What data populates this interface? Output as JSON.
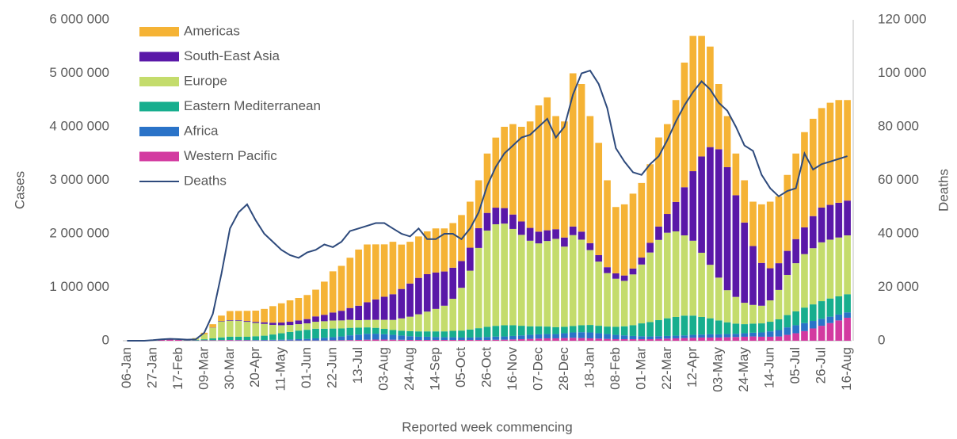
{
  "chart_data": {
    "type": "bar",
    "stacked": true,
    "x_label": "Reported week commencing",
    "y_label": "Cases",
    "y2_label": "Deaths",
    "categories": [
      "06-Jan",
      null,
      null,
      "27-Jan",
      null,
      null,
      "17-Feb",
      null,
      null,
      "09-Mar",
      null,
      null,
      "30-Mar",
      null,
      null,
      "20-Apr",
      null,
      null,
      "11-May",
      null,
      null,
      "01-Jun",
      null,
      null,
      "22-Jun",
      null,
      null,
      "13-Jul",
      null,
      null,
      "03-Aug",
      null,
      null,
      "24-Aug",
      null,
      null,
      "14-Sep",
      null,
      null,
      "05-Oct",
      null,
      null,
      "26-Oct",
      null,
      null,
      "16-Nov",
      null,
      null,
      "07-Dec",
      null,
      null,
      "28-Dec",
      null,
      null,
      "18-Jan",
      null,
      null,
      "08-Feb",
      null,
      null,
      "01-Mar",
      null,
      null,
      "22-Mar",
      null,
      null,
      "12-Apr",
      null,
      null,
      "03-May",
      null,
      null,
      "24-May",
      null,
      null,
      "14-Jun",
      null,
      null,
      "05-Jul",
      null,
      null,
      "26-Jul",
      null,
      null,
      "16-Aug"
    ],
    "ylim": [
      0,
      6000000
    ],
    "yticks": [
      0,
      {
        "value": 1000000,
        "label": "1 000 000"
      },
      {
        "value": 2000000,
        "label": "2 000 000"
      },
      {
        "value": 3000000,
        "label": "3 000 000"
      },
      {
        "value": 4000000,
        "label": "4 000 000"
      },
      {
        "value": 5000000,
        "label": "5 000 000"
      },
      {
        "value": 6000000,
        "label": "6 000 000"
      }
    ],
    "y2lim": [
      0,
      120000
    ],
    "y2ticks": [
      0,
      {
        "value": 20000,
        "label": "20 000"
      },
      {
        "value": 40000,
        "label": "40 000"
      },
      {
        "value": 60000,
        "label": "60 000"
      },
      {
        "value": 80000,
        "label": "80 000"
      },
      {
        "value": 100000,
        "label": "100 000"
      },
      {
        "value": 120000,
        "label": "120 000"
      }
    ],
    "legend": "top-left",
    "series": [
      {
        "name": "Americas",
        "color": "#f5b335",
        "values": [
          0,
          0,
          0,
          0,
          0,
          0,
          0,
          2000,
          5000,
          30000,
          60000,
          100000,
          170000,
          170000,
          190000,
          210000,
          250000,
          310000,
          360000,
          400000,
          420000,
          450000,
          500000,
          620000,
          770000,
          840000,
          940000,
          1050000,
          1080000,
          1030000,
          980000,
          980000,
          830000,
          780000,
          775000,
          800000,
          825000,
          805000,
          835000,
          860000,
          860000,
          895000,
          1110000,
          1310000,
          1520000,
          1690000,
          1770000,
          1990000,
          2360000,
          2485000,
          2115000,
          2170000,
          2865000,
          2760000,
          2375000,
          2100000,
          1625000,
          1240000,
          1330000,
          1400000,
          1395000,
          1470000,
          1665000,
          1680000,
          1905000,
          2330000,
          2530000,
          2255000,
          1880000,
          1220000,
          955000,
          780000,
          790000,
          830000,
          1095000,
          1245000,
          1250000,
          1420000,
          1600000,
          1780000,
          1820000,
          1860000,
          1910000,
          1920000,
          1880000
        ]
      },
      {
        "name": "South-East Asia",
        "color": "#5a18a8",
        "values": [
          0,
          0,
          0,
          0,
          0,
          0,
          0,
          0,
          1000,
          2000,
          5000,
          8000,
          10000,
          12000,
          15000,
          20000,
          30000,
          40000,
          50000,
          60000,
          70000,
          80000,
          100000,
          120000,
          150000,
          180000,
          220000,
          270000,
          330000,
          380000,
          430000,
          480000,
          550000,
          620000,
          680000,
          700000,
          680000,
          640000,
          580000,
          500000,
          430000,
          370000,
          330000,
          310000,
          290000,
          270000,
          250000,
          240000,
          220000,
          200000,
          180000,
          170000,
          160000,
          150000,
          130000,
          120000,
          110000,
          100000,
          100000,
          110000,
          130000,
          180000,
          250000,
          350000,
          550000,
          900000,
          1300000,
          1800000,
          2200000,
          2400000,
          2300000,
          1900000,
          1500000,
          1100000,
          800000,
          600000,
          500000,
          450000,
          450000,
          500000,
          600000,
          650000,
          650000,
          650000,
          650000
        ]
      },
      {
        "name": "Europe",
        "color": "#c4dc6c",
        "values": [
          0,
          0,
          0,
          0,
          0,
          0,
          2000,
          8000,
          30000,
          90000,
          200000,
          300000,
          300000,
          300000,
          280000,
          250000,
          220000,
          180000,
          150000,
          130000,
          120000,
          120000,
          130000,
          140000,
          150000,
          150000,
          150000,
          140000,
          140000,
          150000,
          170000,
          190000,
          230000,
          270000,
          320000,
          370000,
          420000,
          480000,
          600000,
          800000,
          1100000,
          1500000,
          1800000,
          1900000,
          1900000,
          1800000,
          1700000,
          1600000,
          1550000,
          1600000,
          1650000,
          1500000,
          1700000,
          1600000,
          1400000,
          1200000,
          1000000,
          900000,
          850000,
          950000,
          1100000,
          1300000,
          1500000,
          1600000,
          1600000,
          1500000,
          1400000,
          1200000,
          1000000,
          800000,
          600000,
          500000,
          400000,
          350000,
          330000,
          400000,
          550000,
          750000,
          900000,
          1000000,
          1050000,
          1100000,
          1100000,
          1100000,
          1100000
        ]
      },
      {
        "name": "Eastern Mediterranean",
        "color": "#17ae8e",
        "values": [
          0,
          0,
          0,
          0,
          0,
          0,
          0,
          3000,
          10000,
          20000,
          35000,
          50000,
          60000,
          60000,
          60000,
          70000,
          80000,
          100000,
          120000,
          140000,
          160000,
          170000,
          180000,
          170000,
          160000,
          150000,
          140000,
          130000,
          120000,
          110000,
          100000,
          90000,
          90000,
          95000,
          100000,
          100000,
          105000,
          110000,
          120000,
          130000,
          150000,
          170000,
          190000,
          200000,
          210000,
          200000,
          180000,
          160000,
          150000,
          140000,
          130000,
          120000,
          120000,
          130000,
          140000,
          140000,
          140000,
          150000,
          170000,
          200000,
          240000,
          270000,
          300000,
          330000,
          350000,
          370000,
          360000,
          330000,
          300000,
          260000,
          220000,
          190000,
          170000,
          170000,
          170000,
          180000,
          200000,
          230000,
          260000,
          290000,
          310000,
          330000,
          340000,
          340000,
          340000
        ]
      },
      {
        "name": "Africa",
        "color": "#2a73c8",
        "values": [
          0,
          0,
          0,
          0,
          0,
          0,
          0,
          0,
          0,
          0,
          1000,
          2000,
          3000,
          5000,
          6000,
          8000,
          10000,
          12000,
          15000,
          20000,
          25000,
          30000,
          40000,
          50000,
          60000,
          70000,
          90000,
          100000,
          110000,
          110000,
          100000,
          90000,
          80000,
          70000,
          60000,
          60000,
          55000,
          50000,
          50000,
          45000,
          45000,
          50000,
          55000,
          60000,
          60000,
          65000,
          70000,
          75000,
          80000,
          80000,
          80000,
          90000,
          100000,
          110000,
          110000,
          100000,
          90000,
          80000,
          70000,
          60000,
          55000,
          50000,
          50000,
          50000,
          50000,
          50000,
          55000,
          55000,
          60000,
          60000,
          60000,
          60000,
          65000,
          70000,
          80000,
          100000,
          120000,
          140000,
          150000,
          150000,
          140000,
          130000,
          120000,
          110000,
          100000
        ]
      },
      {
        "name": "Western Pacific",
        "color": "#d33aa0",
        "values": [
          0,
          0,
          0,
          15000,
          20000,
          25000,
          15000,
          5000,
          5000,
          8000,
          8000,
          10000,
          12000,
          10000,
          8000,
          5000,
          5000,
          5000,
          5000,
          5000,
          5000,
          5000,
          5000,
          5000,
          8000,
          10000,
          12000,
          15000,
          20000,
          22000,
          22000,
          20000,
          18000,
          15000,
          15000,
          15000,
          15000,
          15000,
          15000,
          15000,
          15000,
          15000,
          15000,
          18000,
          20000,
          25000,
          30000,
          35000,
          40000,
          45000,
          45000,
          50000,
          55000,
          50000,
          45000,
          40000,
          35000,
          30000,
          30000,
          30000,
          30000,
          30000,
          35000,
          40000,
          45000,
          50000,
          55000,
          60000,
          60000,
          60000,
          65000,
          70000,
          75000,
          80000,
          75000,
          75000,
          80000,
          110000,
          140000,
          180000,
          230000,
          280000,
          330000,
          380000,
          430000
        ]
      },
      {
        "name": "Deaths",
        "type": "line",
        "axis": "y2",
        "color": "#2e4a7c",
        "values": [
          0,
          0,
          0,
          200,
          500,
          700,
          600,
          400,
          500,
          3000,
          10000,
          25000,
          42000,
          48000,
          51000,
          45000,
          40000,
          37000,
          34000,
          32000,
          31000,
          33000,
          34000,
          36000,
          35000,
          37000,
          41000,
          42000,
          43000,
          44000,
          44000,
          42000,
          40000,
          39000,
          42000,
          38000,
          38000,
          40000,
          40000,
          38000,
          42000,
          48000,
          58000,
          65000,
          70000,
          73000,
          76000,
          77000,
          80000,
          83000,
          76000,
          80000,
          92000,
          100000,
          101000,
          96000,
          87000,
          72000,
          67000,
          63000,
          62000,
          66000,
          69000,
          75000,
          82000,
          88000,
          93000,
          97000,
          94000,
          89000,
          86000,
          80000,
          73000,
          71000,
          62000,
          57000,
          54000,
          56000,
          57000,
          70000,
          64000,
          66000,
          67000,
          68000,
          69000
        ]
      }
    ]
  }
}
